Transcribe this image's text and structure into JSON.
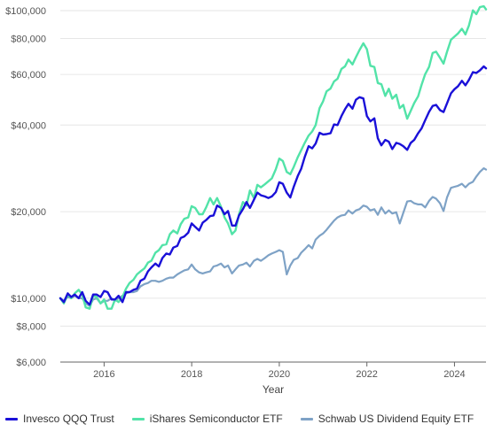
{
  "chart_data": {
    "type": "line",
    "xlabel": "Year",
    "ylabel": "",
    "yscale": "log",
    "xlim": [
      2015.0,
      2024.72
    ],
    "ylim": [
      6000,
      100000
    ],
    "x_ticks": [
      2016,
      2018,
      2020,
      2022,
      2024
    ],
    "x_tick_labels": [
      "2016",
      "2018",
      "2020",
      "2022",
      "2024"
    ],
    "y_ticks": [
      6000,
      8000,
      10000,
      20000,
      40000,
      60000,
      80000,
      100000
    ],
    "y_tick_labels": [
      "$6,000",
      "$8,000",
      "$10,000",
      "$20,000",
      "$40,000",
      "$60,000",
      "$80,000",
      "$100,000"
    ],
    "grid": "horizontal",
    "legend_position": "bottom",
    "x": [
      2015.0,
      2015.08,
      2015.17,
      2015.25,
      2015.33,
      2015.42,
      2015.5,
      2015.58,
      2015.67,
      2015.75,
      2015.83,
      2015.92,
      2016.0,
      2016.08,
      2016.17,
      2016.25,
      2016.33,
      2016.42,
      2016.5,
      2016.58,
      2016.67,
      2016.75,
      2016.83,
      2016.92,
      2017.0,
      2017.08,
      2017.17,
      2017.25,
      2017.33,
      2017.42,
      2017.5,
      2017.58,
      2017.67,
      2017.75,
      2017.83,
      2017.92,
      2018.0,
      2018.08,
      2018.17,
      2018.25,
      2018.33,
      2018.42,
      2018.5,
      2018.58,
      2018.67,
      2018.75,
      2018.83,
      2018.92,
      2019.0,
      2019.08,
      2019.17,
      2019.25,
      2019.33,
      2019.42,
      2019.5,
      2019.58,
      2019.67,
      2019.75,
      2019.83,
      2019.92,
      2020.0,
      2020.08,
      2020.17,
      2020.25,
      2020.33,
      2020.42,
      2020.5,
      2020.58,
      2020.67,
      2020.75,
      2020.83,
      2020.92,
      2021.0,
      2021.08,
      2021.17,
      2021.25,
      2021.33,
      2021.42,
      2021.5,
      2021.58,
      2021.67,
      2021.75,
      2021.83,
      2021.92,
      2022.0,
      2022.08,
      2022.17,
      2022.25,
      2022.33,
      2022.42,
      2022.5,
      2022.58,
      2022.67,
      2022.75,
      2022.83,
      2022.92,
      2023.0,
      2023.08,
      2023.17,
      2023.25,
      2023.33,
      2023.42,
      2023.5,
      2023.58,
      2023.67,
      2023.75,
      2023.83,
      2023.92,
      2024.0,
      2024.08,
      2024.17,
      2024.25,
      2024.33,
      2024.42,
      2024.5,
      2024.58,
      2024.67,
      2024.72
    ],
    "series": [
      {
        "name": "Invesco QQQ Trust",
        "color": "#1a10d8",
        "width": 2.4,
        "values": [
          10000,
          9700,
          10400,
          10100,
          10300,
          10000,
          10500,
          9800,
          9500,
          10300,
          10300,
          10100,
          10600,
          10500,
          9900,
          9900,
          10200,
          9700,
          10500,
          10500,
          10700,
          10800,
          11500,
          11700,
          12400,
          12800,
          13200,
          12900,
          13800,
          14300,
          14200,
          15000,
          15200,
          16200,
          16400,
          16900,
          18200,
          17700,
          17200,
          18300,
          18700,
          19300,
          19400,
          21000,
          20600,
          19600,
          20100,
          17900,
          17900,
          19400,
          20400,
          21600,
          20600,
          22000,
          23300,
          22800,
          22600,
          22300,
          22600,
          23400,
          25300,
          25000,
          23300,
          22400,
          24400,
          26600,
          28200,
          31000,
          33800,
          33200,
          34500,
          37600,
          37100,
          37200,
          37500,
          40200,
          40000,
          43000,
          45400,
          47400,
          45600,
          49000,
          50000,
          49500,
          43000,
          41200,
          42200,
          36000,
          34000,
          35500,
          35000,
          33000,
          34700,
          34400,
          33800,
          32800,
          34700,
          35500,
          37500,
          39000,
          41600,
          44500,
          46600,
          47000,
          45100,
          44400,
          47600,
          51600,
          53300,
          54600,
          57000,
          55000,
          57400,
          61100,
          60700,
          62000,
          64000,
          63000
        ]
      },
      {
        "name": "iShares Semiconductor ETF",
        "color": "#52e3a8",
        "width": 2.4,
        "values": [
          10000,
          9600,
          10300,
          10000,
          10400,
          10700,
          10300,
          9300,
          9200,
          10200,
          10100,
          9600,
          9900,
          9200,
          9200,
          9900,
          9700,
          10100,
          10800,
          11300,
          11600,
          12100,
          12400,
          12700,
          13300,
          13500,
          14400,
          14700,
          15300,
          15400,
          16700,
          17200,
          16800,
          18100,
          18900,
          19100,
          20900,
          20600,
          19600,
          19600,
          20700,
          22300,
          21200,
          22300,
          20800,
          19100,
          18200,
          16700,
          17200,
          19600,
          21600,
          21000,
          23700,
          22300,
          24800,
          24300,
          24900,
          25500,
          26100,
          28100,
          30600,
          30000,
          27500,
          27000,
          28600,
          30900,
          32700,
          34700,
          36800,
          38000,
          40000,
          45800,
          48400,
          52400,
          53600,
          56700,
          58000,
          62700,
          64000,
          67600,
          65000,
          68900,
          72900,
          77000,
          73400,
          64300,
          63700,
          56000,
          55500,
          50500,
          53500,
          49400,
          51000,
          45800,
          47000,
          42100,
          44800,
          47700,
          50400,
          55300,
          60100,
          63700,
          71200,
          72000,
          68600,
          65400,
          71900,
          79200,
          81200,
          83300,
          86500,
          82700,
          88700,
          100200,
          97200,
          102900,
          103500,
          101000
        ]
      },
      {
        "name": "Schwab US Dividend Equity ETF",
        "color": "#7ea2c6",
        "width": 2.2,
        "values": [
          10000,
          9800,
          10100,
          10000,
          10200,
          10000,
          10000,
          9600,
          9400,
          9900,
          10000,
          9600,
          9800,
          9800,
          10000,
          9800,
          10000,
          10200,
          10400,
          10500,
          10500,
          10600,
          11000,
          11200,
          11300,
          11500,
          11500,
          11400,
          11500,
          11700,
          11800,
          11800,
          12100,
          12300,
          12500,
          12600,
          13100,
          12600,
          12300,
          12200,
          12300,
          12400,
          12900,
          13000,
          13200,
          12800,
          13000,
          12200,
          12600,
          13000,
          13100,
          13300,
          12900,
          13500,
          13700,
          13500,
          13800,
          14100,
          14300,
          14500,
          14700,
          14500,
          12100,
          13000,
          13600,
          13800,
          14400,
          14800,
          15300,
          14900,
          16000,
          16500,
          16800,
          17300,
          18000,
          18600,
          19100,
          19400,
          19500,
          20200,
          19700,
          20200,
          20400,
          21000,
          20800,
          20200,
          20400,
          19500,
          20700,
          19700,
          20200,
          19700,
          19900,
          18200,
          19800,
          21700,
          21800,
          21400,
          21200,
          21200,
          20700,
          21800,
          22500,
          22200,
          21400,
          20100,
          22400,
          24200,
          24400,
          24600,
          25000,
          24300,
          25000,
          25400,
          26500,
          27500,
          28300,
          28000
        ]
      }
    ]
  }
}
